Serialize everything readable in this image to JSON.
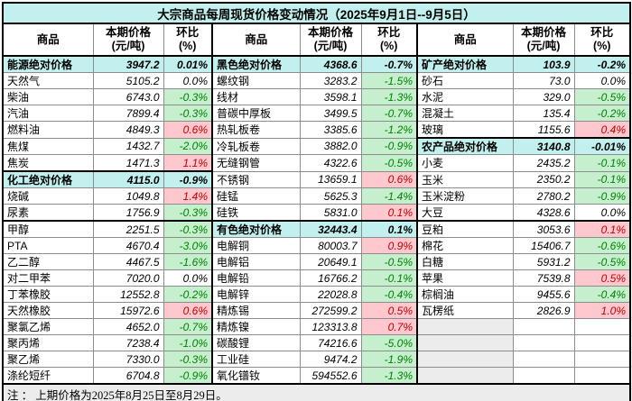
{
  "title": "大宗商品每周现货价格变动情况（2025年9月1日--9月5日）",
  "columns": {
    "commodity": "商品",
    "price_line1": "本期价格",
    "price_line2": "(元/吨)",
    "change_line1": "环比",
    "change_line2": "(%)"
  },
  "footer": {
    "note": "注 ： 上期价格为2025年8月25日至8月29日。"
  },
  "colors": {
    "section_bg": "#c2f0ee",
    "positive_bg": "#ffc7ce",
    "positive_text": "#c00000",
    "negative_bg": "#c6efce",
    "negative_text": "#008000",
    "muted_bg": "#ececec"
  },
  "groups": [
    {
      "rows": [
        {
          "name": "能源绝对价格",
          "price": "3947.2",
          "change": "0.01%",
          "type": "section"
        },
        {
          "name": "天然气",
          "price": "5105.2",
          "change": "0.0%"
        },
        {
          "name": "柴油",
          "price": "6743.0",
          "change": "-0.3%"
        },
        {
          "name": "汽油",
          "price": "7899.4",
          "change": "-0.3%"
        },
        {
          "name": "燃料油",
          "price": "4849.3",
          "change": "0.6%"
        },
        {
          "name": "焦煤",
          "price": "1432.7",
          "change": "-2.0%"
        },
        {
          "name": "焦炭",
          "price": "1471.3",
          "change": "1.1%"
        },
        {
          "name": "化工绝对价格",
          "price": "4115.0",
          "change": "-0.9%",
          "type": "section"
        },
        {
          "name": "烧碱",
          "price": "1049.8",
          "change": "1.4%"
        },
        {
          "name": "尿素",
          "price": "1756.9",
          "change": "-0.3%"
        },
        {
          "name": "甲醇",
          "price": "2251.5",
          "change": "-0.3%"
        },
        {
          "name": "PTA",
          "price": "4670.4",
          "change": "-3.0%"
        },
        {
          "name": "乙二醇",
          "price": "4467.5",
          "change": "-1.6%"
        },
        {
          "name": "对二甲苯",
          "price": "7020.0",
          "change": "0.0%"
        },
        {
          "name": "丁苯橡胶",
          "price": "12552.8",
          "change": "-0.2%"
        },
        {
          "name": "天然橡胶",
          "price": "15972.6",
          "change": "0.6%"
        },
        {
          "name": "聚氯乙烯",
          "price": "4652.0",
          "change": "-0.7%"
        },
        {
          "name": "聚丙烯",
          "price": "7238.4",
          "change": "-1.0%"
        },
        {
          "name": "聚乙烯",
          "price": "7330.0",
          "change": "-0.3%"
        },
        {
          "name": "涤纶短纤",
          "price": "6704.8",
          "change": "-0.9%"
        }
      ]
    },
    {
      "rows": [
        {
          "name": "黑色绝对价格",
          "price": "4368.6",
          "change": "-0.7%",
          "type": "section"
        },
        {
          "name": "螺纹钢",
          "price": "3283.2",
          "change": "-1.5%"
        },
        {
          "name": "线材",
          "price": "3598.1",
          "change": "-1.3%"
        },
        {
          "name": "普碳中厚板",
          "price": "3499.5",
          "change": "-0.7%"
        },
        {
          "name": "热轧板卷",
          "price": "3385.6",
          "change": "-1.2%"
        },
        {
          "name": "冷轧板卷",
          "price": "3882.0",
          "change": "-0.9%"
        },
        {
          "name": "无缝钢管",
          "price": "4322.6",
          "change": "-0.5%"
        },
        {
          "name": "不锈钢",
          "price": "13659.1",
          "change": "0.6%"
        },
        {
          "name": "硅锰",
          "price": "5625.3",
          "change": "-1.4%"
        },
        {
          "name": "硅铁",
          "price": "5831.0",
          "change": "0.1%"
        },
        {
          "name": "有色绝对价格",
          "price": "32443.4",
          "change": "0.1%",
          "type": "section"
        },
        {
          "name": "电解铜",
          "price": "80003.7",
          "change": "0.9%"
        },
        {
          "name": "电解铝",
          "price": "20649.1",
          "change": "-0.5%"
        },
        {
          "name": "电解铅",
          "price": "16766.2",
          "change": "-0.1%"
        },
        {
          "name": "电解锌",
          "price": "22028.8",
          "change": "-0.4%"
        },
        {
          "name": "精炼锡",
          "price": "272599.2",
          "change": "0.5%"
        },
        {
          "name": "精炼镍",
          "price": "123313.8",
          "change": "0.7%"
        },
        {
          "name": "碳酸锂",
          "price": "74216.6",
          "change": "-5.0%"
        },
        {
          "name": "工业硅",
          "price": "9474.2",
          "change": "-1.9%"
        },
        {
          "name": "氧化镨钕",
          "price": "594552.6",
          "change": "-1.3%"
        }
      ]
    },
    {
      "rows": [
        {
          "name": "矿产绝对价格",
          "price": "103.9",
          "change": "-0.2%",
          "type": "section"
        },
        {
          "name": "砂石",
          "price": "73.0",
          "change": "0.0%"
        },
        {
          "name": "水泥",
          "price": "329.0",
          "change": "-0.5%"
        },
        {
          "name": "混凝土",
          "price": "135.4",
          "change": "-0.2%"
        },
        {
          "name": "玻璃",
          "price": "1155.6",
          "change": "0.4%"
        },
        {
          "name": "农产品绝对价格",
          "price": "3140.8",
          "change": "-0.01%",
          "type": "section"
        },
        {
          "name": "小麦",
          "price": "2435.2",
          "change": "-0.1%"
        },
        {
          "name": "玉米",
          "price": "2350.2",
          "change": "-0.1%"
        },
        {
          "name": "玉米淀粉",
          "price": "2780.2",
          "change": "-0.9%"
        },
        {
          "name": "大豆",
          "price": "4328.6",
          "change": "0.0%"
        },
        {
          "name": "豆粕",
          "price": "3053.6",
          "change": "0.1%"
        },
        {
          "name": "棉花",
          "price": "15406.7",
          "change": "-0.6%"
        },
        {
          "name": "白糖",
          "price": "5931.2",
          "change": "-0.5%"
        },
        {
          "name": "苹果",
          "price": "7539.8",
          "change": "0.5%"
        },
        {
          "name": "棕榈油",
          "price": "9455.6",
          "change": "-0.4%"
        },
        {
          "name": "瓦楞纸",
          "price": "2826.9",
          "change": "1.0%"
        },
        {
          "type": "empty"
        },
        {
          "type": "empty"
        },
        {
          "type": "empty"
        },
        {
          "type": "empty"
        }
      ]
    }
  ]
}
